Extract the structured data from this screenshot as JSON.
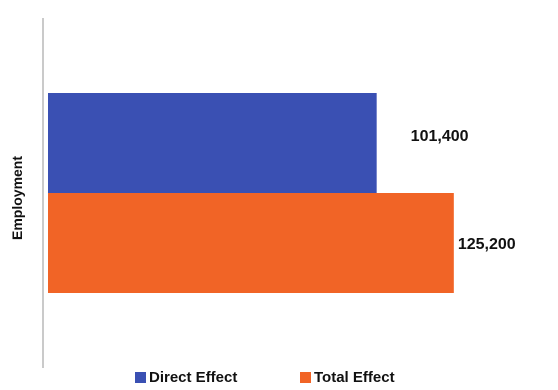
{
  "chart_data": {
    "type": "bar",
    "orientation": "horizontal",
    "title": "",
    "ylabel": "Employment",
    "categories": [
      "Employment"
    ],
    "series": [
      {
        "name": "Direct Effect",
        "values": [
          101400
        ],
        "label": "101,400",
        "color": "#3a50b3"
      },
      {
        "name": "Total Effect",
        "values": [
          125200
        ],
        "label": "125,200",
        "color": "#f16426"
      }
    ],
    "xlim": [
      0,
      145000
    ],
    "grid": false,
    "legend": "bottom"
  }
}
